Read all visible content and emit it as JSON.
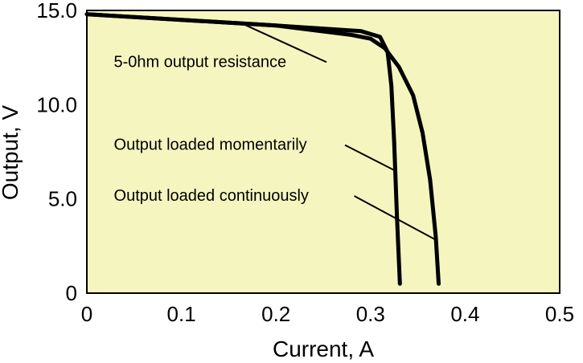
{
  "chart_data": {
    "type": "line",
    "background_color": "#f5f5c0",
    "line_color": "#000000",
    "xlabel": "Current, A",
    "ylabel": "Output, V",
    "xlim": [
      0,
      0.5
    ],
    "ylim": [
      0,
      15.0
    ],
    "x_ticks": [
      "0",
      "0.1",
      "0.2",
      "0.3",
      "0.4",
      "0.5"
    ],
    "y_ticks": [
      "0",
      "5.0",
      "10.0",
      "15.0"
    ],
    "grid": false,
    "series": [
      {
        "name": "Output loaded momentarily",
        "points": [
          [
            0.0,
            14.8
          ],
          [
            0.1,
            14.5
          ],
          [
            0.2,
            14.2
          ],
          [
            0.29,
            13.9
          ],
          [
            0.31,
            13.6
          ],
          [
            0.318,
            12.8
          ],
          [
            0.322,
            11.0
          ],
          [
            0.325,
            8.0
          ],
          [
            0.328,
            4.0
          ],
          [
            0.331,
            0.5
          ]
        ]
      },
      {
        "name": "Output loaded continuously",
        "points": [
          [
            0.0,
            14.8
          ],
          [
            0.1,
            14.5
          ],
          [
            0.2,
            14.2
          ],
          [
            0.28,
            13.7
          ],
          [
            0.3,
            13.5
          ],
          [
            0.315,
            13.0
          ],
          [
            0.33,
            12.0
          ],
          [
            0.345,
            10.5
          ],
          [
            0.355,
            8.5
          ],
          [
            0.363,
            6.0
          ],
          [
            0.369,
            3.0
          ],
          [
            0.372,
            0.5
          ]
        ]
      }
    ],
    "annotations": [
      {
        "text": "5-0hm output resistance",
        "x": 0.16,
        "y": 14.4,
        "label_x": 0.02,
        "label_y": 12.0
      },
      {
        "text": "Output loaded momentarily",
        "x": 0.326,
        "y": 6.5,
        "label_x": 0.02,
        "label_y": 7.6
      },
      {
        "text": "Output loaded continuously",
        "x": 0.37,
        "y": 2.8,
        "label_x": 0.02,
        "label_y": 4.9
      }
    ]
  }
}
